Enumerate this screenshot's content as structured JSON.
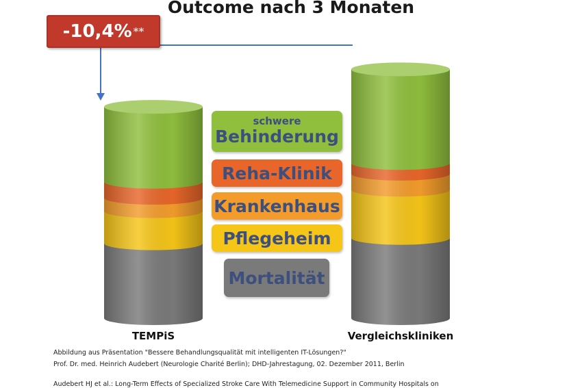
{
  "chart_data": {
    "type": "bar",
    "stacked": true,
    "title": "Outcome nach 3 Monaten",
    "categories": [
      "TEMPiS",
      "Vergleichskliniken"
    ],
    "series": [
      {
        "name": "Mortalität",
        "color": "#7a7a7a",
        "values": [
          28,
          30
        ]
      },
      {
        "name": "Pflegeheim",
        "color": "#f5c518",
        "values": [
          12,
          18
        ]
      },
      {
        "name": "Krankenhaus",
        "color": "#f39c2c",
        "values": [
          5,
          6
        ]
      },
      {
        "name": "Reha-Klinik",
        "color": "#e8662a",
        "values": [
          6,
          4
        ]
      },
      {
        "name": "schwere Behinderung",
        "color": "#8fbf3d",
        "values": [
          28,
          35
        ]
      }
    ],
    "ylim": [
      0,
      100
    ],
    "annotation": {
      "text": "-10,4%",
      "suffix": "**"
    }
  },
  "legend": {
    "behinderung_top": "schwere",
    "behinderung_main": "Behinderung",
    "reha": "Reha-Klinik",
    "krankenhaus": "Krankenhaus",
    "pflegeheim": "Pflegeheim",
    "mortalitaet": "Mortalität"
  },
  "footnotes": {
    "line1": "Abbildung aus Präsentation \"Bessere Behandlungsqualität mit intelligenten IT-Lösungen?\"",
    "line2": "Prof. Dr. med. Heinrich Audebert (Neurologie Charité Berlin); DHD-Jahrestagung, 02. Dezember 2011,  Berlin",
    "line3": "Audebert HJ et al.: Long-Term Effects of Specialized Stroke Care With Telemedicine Support in Community Hospitals on"
  }
}
